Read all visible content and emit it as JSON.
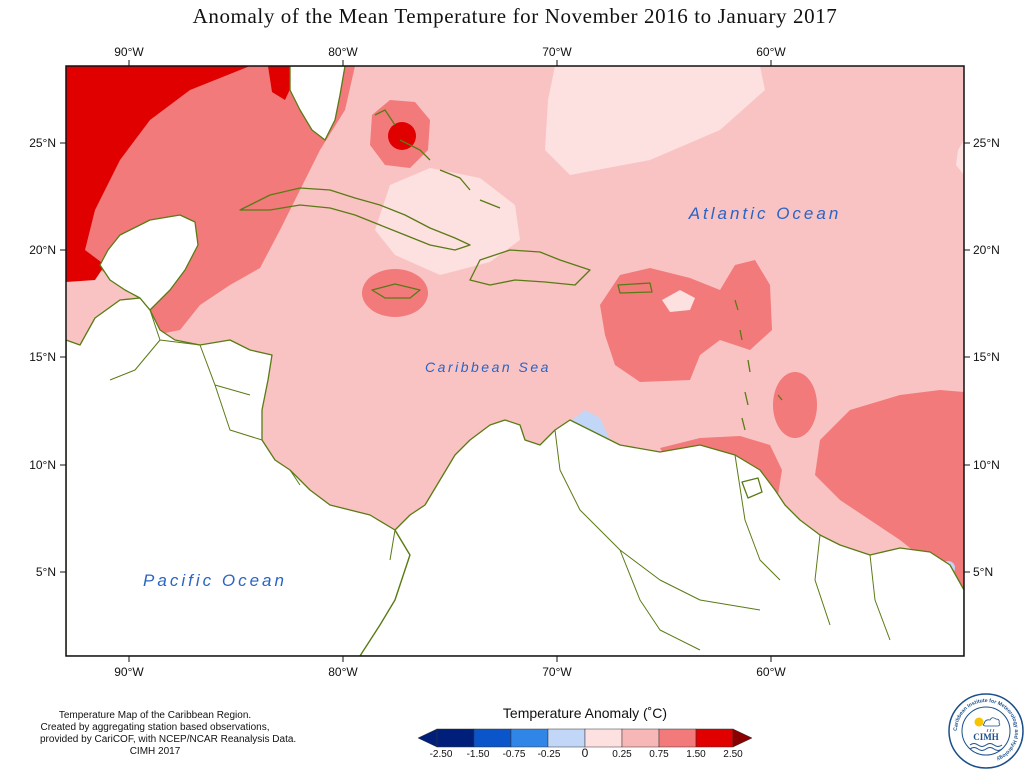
{
  "title": "Anomaly of the Mean Temperature for November 2016 to January 2017",
  "map": {
    "lon_labels": [
      "90°W",
      "80°W",
      "70°W",
      "60°W"
    ],
    "lat_labels": [
      "25°N",
      "20°N",
      "15°N",
      "10°N",
      "5°N"
    ],
    "ocean_labels": {
      "atlantic": "Atlantic Ocean",
      "caribbean": "Caribbean Sea",
      "pacific": "Pacific Ocean"
    }
  },
  "legend": {
    "title": "Temperature Anomaly (˚C)",
    "tick_labels": [
      "-2.50",
      "-1.50",
      "-0.75",
      "-0.25",
      "0",
      "0.25",
      "0.75",
      "1.50",
      "2.50"
    ],
    "colors": [
      "#001f7a",
      "#0a55c9",
      "#2f86e6",
      "#6fa9f0",
      "#c2d6f7",
      "#fde0e0",
      "#f7b7b7",
      "#f27a7a",
      "#e00000",
      "#8a0000"
    ]
  },
  "credits": [
    "Temperature Map of the Caribbean Region.",
    "Created by aggregating station based observations,",
    "provided by CariCOF, with NCEP/NCAR Reanalysis Data.",
    "CIMH 2017"
  ],
  "logo": {
    "name": "CIMH",
    "ring_text": "Caribbean Institute for Meteorology and Hydrology"
  }
}
